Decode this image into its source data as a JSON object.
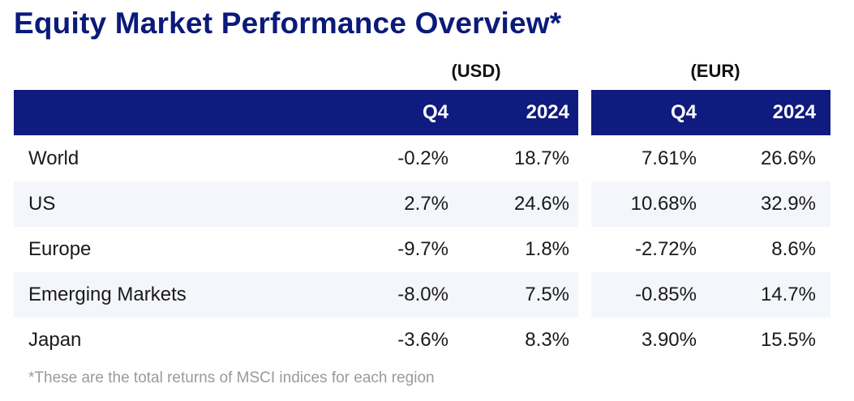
{
  "title": "Equity Market Performance Overview*",
  "footnote": "*These are the total returns of MSCI indices for each region",
  "chart_data": {
    "type": "table",
    "title": "Equity Market Performance Overview*",
    "column_groups": [
      {
        "name": "(USD)",
        "columns": [
          "Q4",
          "2024"
        ]
      },
      {
        "name": "(EUR)",
        "columns": [
          "Q4",
          "2024"
        ]
      }
    ],
    "rows": [
      {
        "label": "World",
        "values": [
          "-0.2%",
          "18.7%",
          "7.61%",
          "26.6%"
        ]
      },
      {
        "label": "US",
        "values": [
          "2.7%",
          "24.6%",
          "10.68%",
          "32.9%"
        ]
      },
      {
        "label": "Europe",
        "values": [
          "-9.7%",
          "1.8%",
          "-2.72%",
          "8.6%"
        ]
      },
      {
        "label": "Emerging Markets",
        "values": [
          "-8.0%",
          "7.5%",
          "-0.85%",
          "14.7%"
        ]
      },
      {
        "label": "Japan",
        "values": [
          "-3.6%",
          "8.3%",
          "3.90%",
          "15.5%"
        ]
      }
    ]
  },
  "colors": {
    "header": "#0f1b7e",
    "title": "#0b1a7a",
    "row_alt": "#f4f6fb"
  }
}
